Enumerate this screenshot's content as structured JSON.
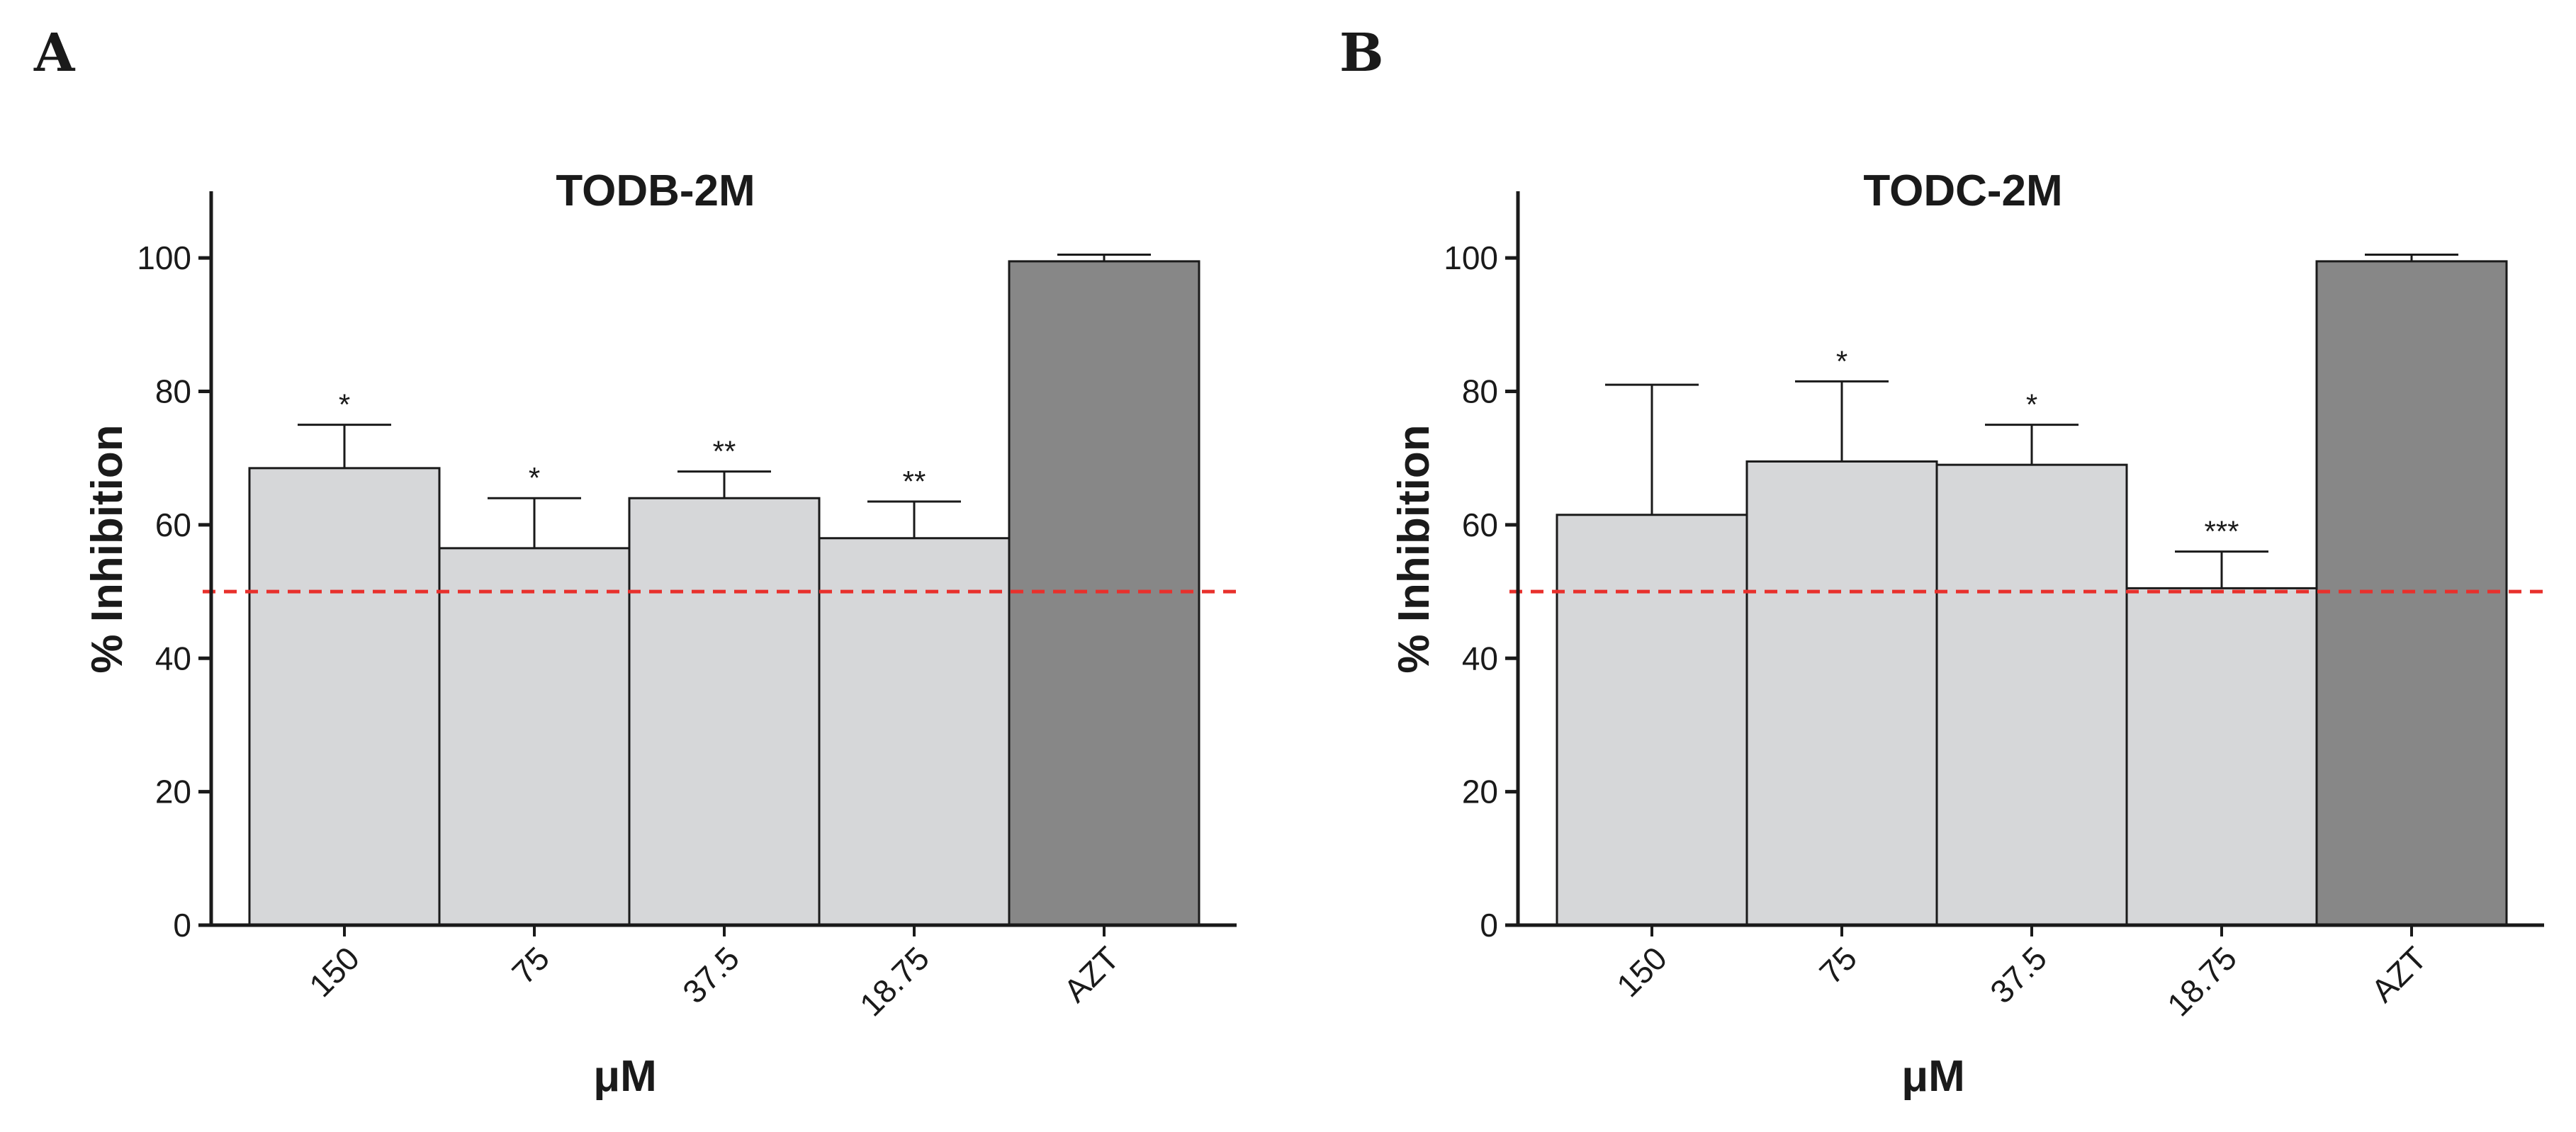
{
  "chart_data": [
    {
      "type": "bar",
      "panel": "A",
      "title": "TODB-2M",
      "xlabel": "μM",
      "ylabel": "% Inhibition",
      "ylim": [
        0,
        110
      ],
      "yticks": [
        0,
        20,
        40,
        60,
        80,
        100
      ],
      "categories": [
        "150",
        "75",
        "37.5",
        "18.75",
        "AZT"
      ],
      "values": [
        68.5,
        56.5,
        64,
        58,
        99.5
      ],
      "errors": [
        6.5,
        7.5,
        4,
        5.5,
        1
      ],
      "significance": [
        "*",
        "*",
        "**",
        "**",
        ""
      ],
      "bar_colors": [
        "#d6d7d9",
        "#d6d7d9",
        "#d6d7d9",
        "#d6d7d9",
        "#878787"
      ],
      "reference_line": {
        "value": 50,
        "color": "#e8302c",
        "style": "dashed"
      }
    },
    {
      "type": "bar",
      "panel": "B",
      "title": "TODC-2M",
      "xlabel": "μM",
      "ylabel": "% Inhibition",
      "ylim": [
        0,
        110
      ],
      "yticks": [
        0,
        20,
        40,
        60,
        80,
        100
      ],
      "categories": [
        "150",
        "75",
        "37.5",
        "18.75",
        "AZT"
      ],
      "values": [
        61.5,
        69.5,
        69,
        50.5,
        99.5
      ],
      "errors": [
        19.5,
        12,
        6,
        5.5,
        1
      ],
      "significance": [
        "",
        "*",
        "*",
        "***",
        ""
      ],
      "bar_colors": [
        "#d6d7d9",
        "#d6d7d9",
        "#d6d7d9",
        "#d6d7d9",
        "#878787"
      ],
      "reference_line": {
        "value": 50,
        "color": "#e8302c",
        "style": "dashed"
      }
    }
  ]
}
